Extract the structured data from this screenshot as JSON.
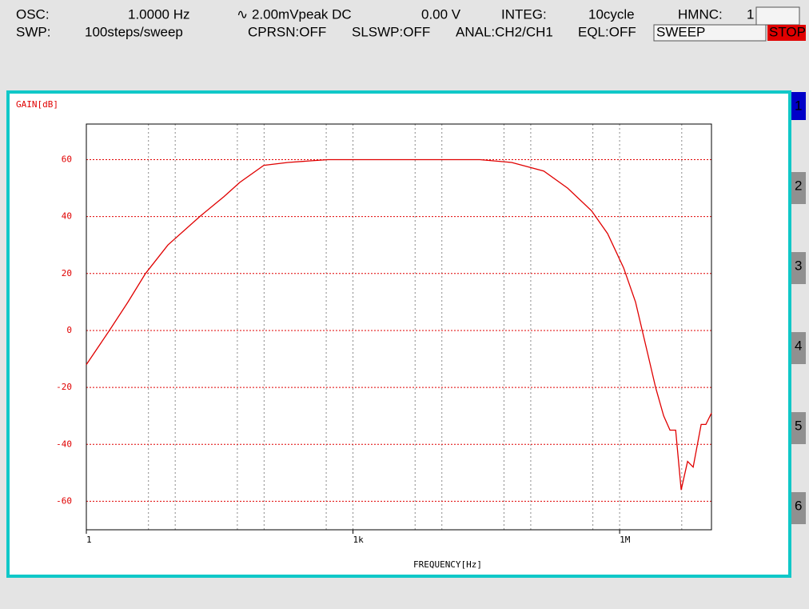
{
  "status": {
    "line1": [
      "OSC:",
      "1.0000 Hz",
      "∿ 2.00mVpeak DC",
      "0.00 V",
      "INTEG:",
      "10cycle",
      "HMNC:",
      "1"
    ],
    "line2": [
      "SWP:",
      "100steps/sweep",
      "CPRSN:OFF",
      "SLSWP:OFF",
      "ANAL:CH2/CH1",
      "EQL:OFF",
      "SWEEP",
      "STOP"
    ]
  },
  "tabs": [
    "1",
    "2",
    "3",
    "4",
    "5",
    "6"
  ],
  "chart_data": {
    "type": "line",
    "y_label": "GAIN[dB]",
    "x_label": "FREQUENCY[Hz]",
    "log_x": true,
    "x": [
      1,
      1.82,
      2.94,
      4.63,
      8.26,
      18.9,
      35.3,
      53.3,
      99.3,
      185,
      520,
      3360,
      26700,
      61000,
      140000,
      260000,
      484000,
      733000,
      1110000,
      1510000,
      2065000,
      2540000,
      3130000,
      3690000,
      4270000,
      4930000,
      5820000,
      6720000,
      8260000,
      9350000,
      10800000
    ],
    "series": [
      {
        "name": "GAIN",
        "color": "#e00000",
        "values": [
          -12,
          0,
          10,
          20,
          30,
          40,
          47,
          52,
          58,
          59,
          60,
          60,
          60,
          59,
          56,
          50,
          42,
          34,
          22,
          10,
          -8,
          -20,
          -30,
          -35,
          -35,
          -56,
          -46,
          -48,
          -33,
          -33,
          -29
        ]
      }
    ],
    "xlim": [
      1,
      10800000
    ],
    "ylim": [
      -70,
      72.5
    ],
    "xticks": [
      1,
      {
        "value": 1000,
        "label": "1k"
      },
      {
        "value": 1000000,
        "label": "1M"
      }
    ],
    "xgrid": [
      5,
      10,
      50,
      100,
      500,
      1000,
      5000,
      10000,
      50000,
      100000,
      500000,
      1000000,
      5000000
    ],
    "yticks": [
      -60,
      -40,
      -20,
      0,
      20,
      40,
      60
    ],
    "grid": true
  }
}
